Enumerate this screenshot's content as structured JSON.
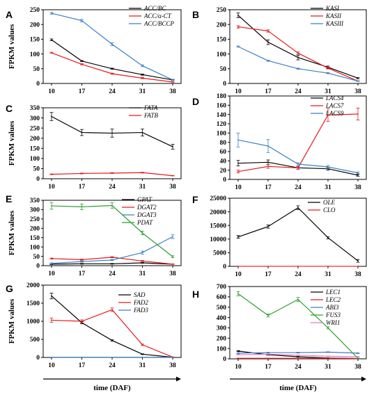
{
  "figure": {
    "shared_xlabel": "time (DAF)",
    "shared_ylabel": "FPKM values"
  },
  "chart_data": [
    {
      "panel": "A",
      "type": "line",
      "x": [
        10,
        17,
        24,
        31,
        38
      ],
      "ylim": [
        0,
        250
      ],
      "yticks": [
        0,
        50,
        100,
        150,
        200,
        250
      ],
      "ylabel": "FPKM values",
      "xlabel": "",
      "series": [
        {
          "name": "ACC/BC",
          "color": "#000000",
          "values": [
            148,
            76,
            50,
            30,
            12
          ],
          "err": [
            3,
            2,
            2,
            2,
            1
          ]
        },
        {
          "name": "ACC/α-CT",
          "color": "#e31a1c",
          "values": [
            104,
            65,
            33,
            18,
            5
          ],
          "err": [
            2,
            2,
            2,
            2,
            1
          ]
        },
        {
          "name": "ACC/BCCP",
          "color": "#3a7fc1",
          "values": [
            238,
            213,
            133,
            60,
            12
          ],
          "err": [
            3,
            4,
            5,
            3,
            2
          ]
        }
      ]
    },
    {
      "panel": "B",
      "type": "line",
      "x": [
        10,
        17,
        24,
        31,
        38
      ],
      "ylim": [
        0,
        250
      ],
      "yticks": [
        0,
        50,
        100,
        150,
        200,
        250
      ],
      "ylabel": "",
      "xlabel": "",
      "series": [
        {
          "name": "KASI",
          "color": "#000000",
          "values": [
            231,
            140,
            88,
            55,
            18
          ],
          "err": [
            8,
            8,
            8,
            4,
            2
          ]
        },
        {
          "name": "KASII",
          "color": "#e31a1c",
          "values": [
            192,
            178,
            103,
            52,
            8
          ],
          "err": [
            4,
            4,
            4,
            3,
            1
          ]
        },
        {
          "name": "KASIII",
          "color": "#3a7fc1",
          "values": [
            125,
            77,
            50,
            35,
            8
          ],
          "err": [
            2,
            2,
            2,
            2,
            1
          ]
        }
      ]
    },
    {
      "panel": "C",
      "type": "line",
      "x": [
        10,
        17,
        24,
        31,
        38
      ],
      "ylim": [
        0,
        350
      ],
      "yticks": [
        0,
        50,
        100,
        150,
        200,
        250,
        300,
        350
      ],
      "ylabel": "FPKM values",
      "xlabel": "",
      "series": [
        {
          "name": "FATA",
          "color": "#000000",
          "values": [
            307,
            228,
            225,
            228,
            158
          ],
          "err": [
            20,
            15,
            20,
            17,
            12
          ]
        },
        {
          "name": "FATB",
          "color": "#e31a1c",
          "values": [
            22,
            26,
            28,
            30,
            15
          ],
          "err": [
            2,
            2,
            2,
            2,
            1
          ]
        }
      ]
    },
    {
      "panel": "D",
      "type": "line",
      "x": [
        10,
        17,
        24,
        31,
        38
      ],
      "ylim": [
        0,
        180
      ],
      "yticks": [
        0,
        20,
        40,
        60,
        80,
        100,
        120,
        140,
        160,
        180
      ],
      "ylabel": "",
      "xlabel": "",
      "series": [
        {
          "name": "LACS4",
          "color": "#000000",
          "values": [
            35,
            37,
            25,
            23,
            9
          ],
          "err": [
            6,
            5,
            3,
            3,
            2
          ]
        },
        {
          "name": "LACS7",
          "color": "#e31a1c",
          "values": [
            17,
            28,
            25,
            139,
            141
          ],
          "err": [
            3,
            4,
            3,
            14,
            13
          ]
        },
        {
          "name": "LACS9",
          "color": "#3a7fc1",
          "values": [
            85,
            72,
            33,
            27,
            14
          ],
          "err": [
            15,
            14,
            3,
            3,
            2
          ]
        }
      ]
    },
    {
      "panel": "E",
      "type": "line",
      "x": [
        10,
        17,
        24,
        31,
        38
      ],
      "ylim": [
        0,
        350
      ],
      "yticks": [
        0,
        50,
        100,
        150,
        200,
        250,
        300,
        350
      ],
      "ylabel": "FPKM values",
      "xlabel": "",
      "series": [
        {
          "name": "GPAT",
          "color": "#000000",
          "values": [
            8,
            10,
            10,
            15,
            8
          ],
          "err": [
            2,
            2,
            2,
            2,
            1
          ]
        },
        {
          "name": "DGAT2",
          "color": "#e31a1c",
          "values": [
            38,
            32,
            45,
            25,
            8
          ],
          "err": [
            3,
            3,
            3,
            3,
            1
          ]
        },
        {
          "name": "DGAT3",
          "color": "#3a7fc1",
          "values": [
            12,
            22,
            30,
            70,
            155
          ],
          "err": [
            3,
            3,
            3,
            8,
            10
          ]
        },
        {
          "name": "PDAT",
          "color": "#2ca02c",
          "values": [
            320,
            315,
            322,
            175,
            48
          ],
          "err": [
            18,
            15,
            15,
            10,
            5
          ]
        }
      ]
    },
    {
      "panel": "F",
      "type": "line",
      "x": [
        10,
        17,
        24,
        31,
        38
      ],
      "ylim": [
        0,
        25000
      ],
      "yticks": [
        0,
        5000,
        10000,
        15000,
        20000,
        25000
      ],
      "ylabel": "",
      "xlabel": "",
      "series": [
        {
          "name": "OLE",
          "color": "#000000",
          "values": [
            10800,
            14600,
            21500,
            10500,
            2000
          ],
          "err": [
            500,
            600,
            700,
            400,
            500
          ]
        },
        {
          "name": "CLO",
          "color": "#e31a1c",
          "values": [
            10,
            10,
            10,
            10,
            10
          ],
          "err": [
            0,
            0,
            0,
            0,
            0
          ]
        }
      ]
    },
    {
      "panel": "G",
      "type": "line",
      "x": [
        10,
        17,
        24,
        31,
        38
      ],
      "ylim": [
        0,
        2000
      ],
      "yticks": [
        0,
        500,
        1000,
        1500,
        2000
      ],
      "ylabel": "FPKM values",
      "xlabel": "",
      "series": [
        {
          "name": "SAD",
          "color": "#000000",
          "values": [
            1700,
            960,
            470,
            90,
            5
          ],
          "err": [
            80,
            30,
            20,
            10,
            2
          ]
        },
        {
          "name": "FAD2",
          "color": "#e31a1c",
          "values": [
            1030,
            1000,
            1320,
            350,
            10
          ],
          "err": [
            60,
            40,
            50,
            20,
            3
          ]
        },
        {
          "name": "FAD3",
          "color": "#3a7fc1",
          "values": [
            5,
            5,
            5,
            5,
            5
          ],
          "err": [
            0,
            0,
            0,
            0,
            0
          ]
        }
      ]
    },
    {
      "panel": "H",
      "type": "line",
      "x": [
        10,
        17,
        24,
        31,
        38
      ],
      "ylim": [
        0,
        700
      ],
      "yticks": [
        0,
        100,
        200,
        300,
        400,
        500,
        600,
        700
      ],
      "ylabel": "",
      "xlabel": "",
      "series": [
        {
          "name": "LEC1",
          "color": "#000000",
          "values": [
            75,
            40,
            20,
            8,
            3
          ],
          "err": [
            5,
            4,
            3,
            2,
            1
          ]
        },
        {
          "name": "LEC2",
          "color": "#e31a1c",
          "values": [
            5,
            5,
            5,
            5,
            3
          ],
          "err": [
            1,
            1,
            1,
            1,
            1
          ]
        },
        {
          "name": "ABI3",
          "color": "#3a7fc1",
          "values": [
            55,
            60,
            60,
            65,
            55
          ],
          "err": [
            4,
            4,
            4,
            4,
            4
          ]
        },
        {
          "name": "FUS3",
          "color": "#2ca02c",
          "values": [
            630,
            420,
            575,
            300,
            5
          ],
          "err": [
            20,
            15,
            20,
            10,
            2
          ]
        },
        {
          "name": "WRI1",
          "color": "#e377c2",
          "values": [
            40,
            45,
            35,
            25,
            20
          ],
          "err": [
            3,
            3,
            3,
            3,
            2
          ]
        }
      ]
    }
  ]
}
